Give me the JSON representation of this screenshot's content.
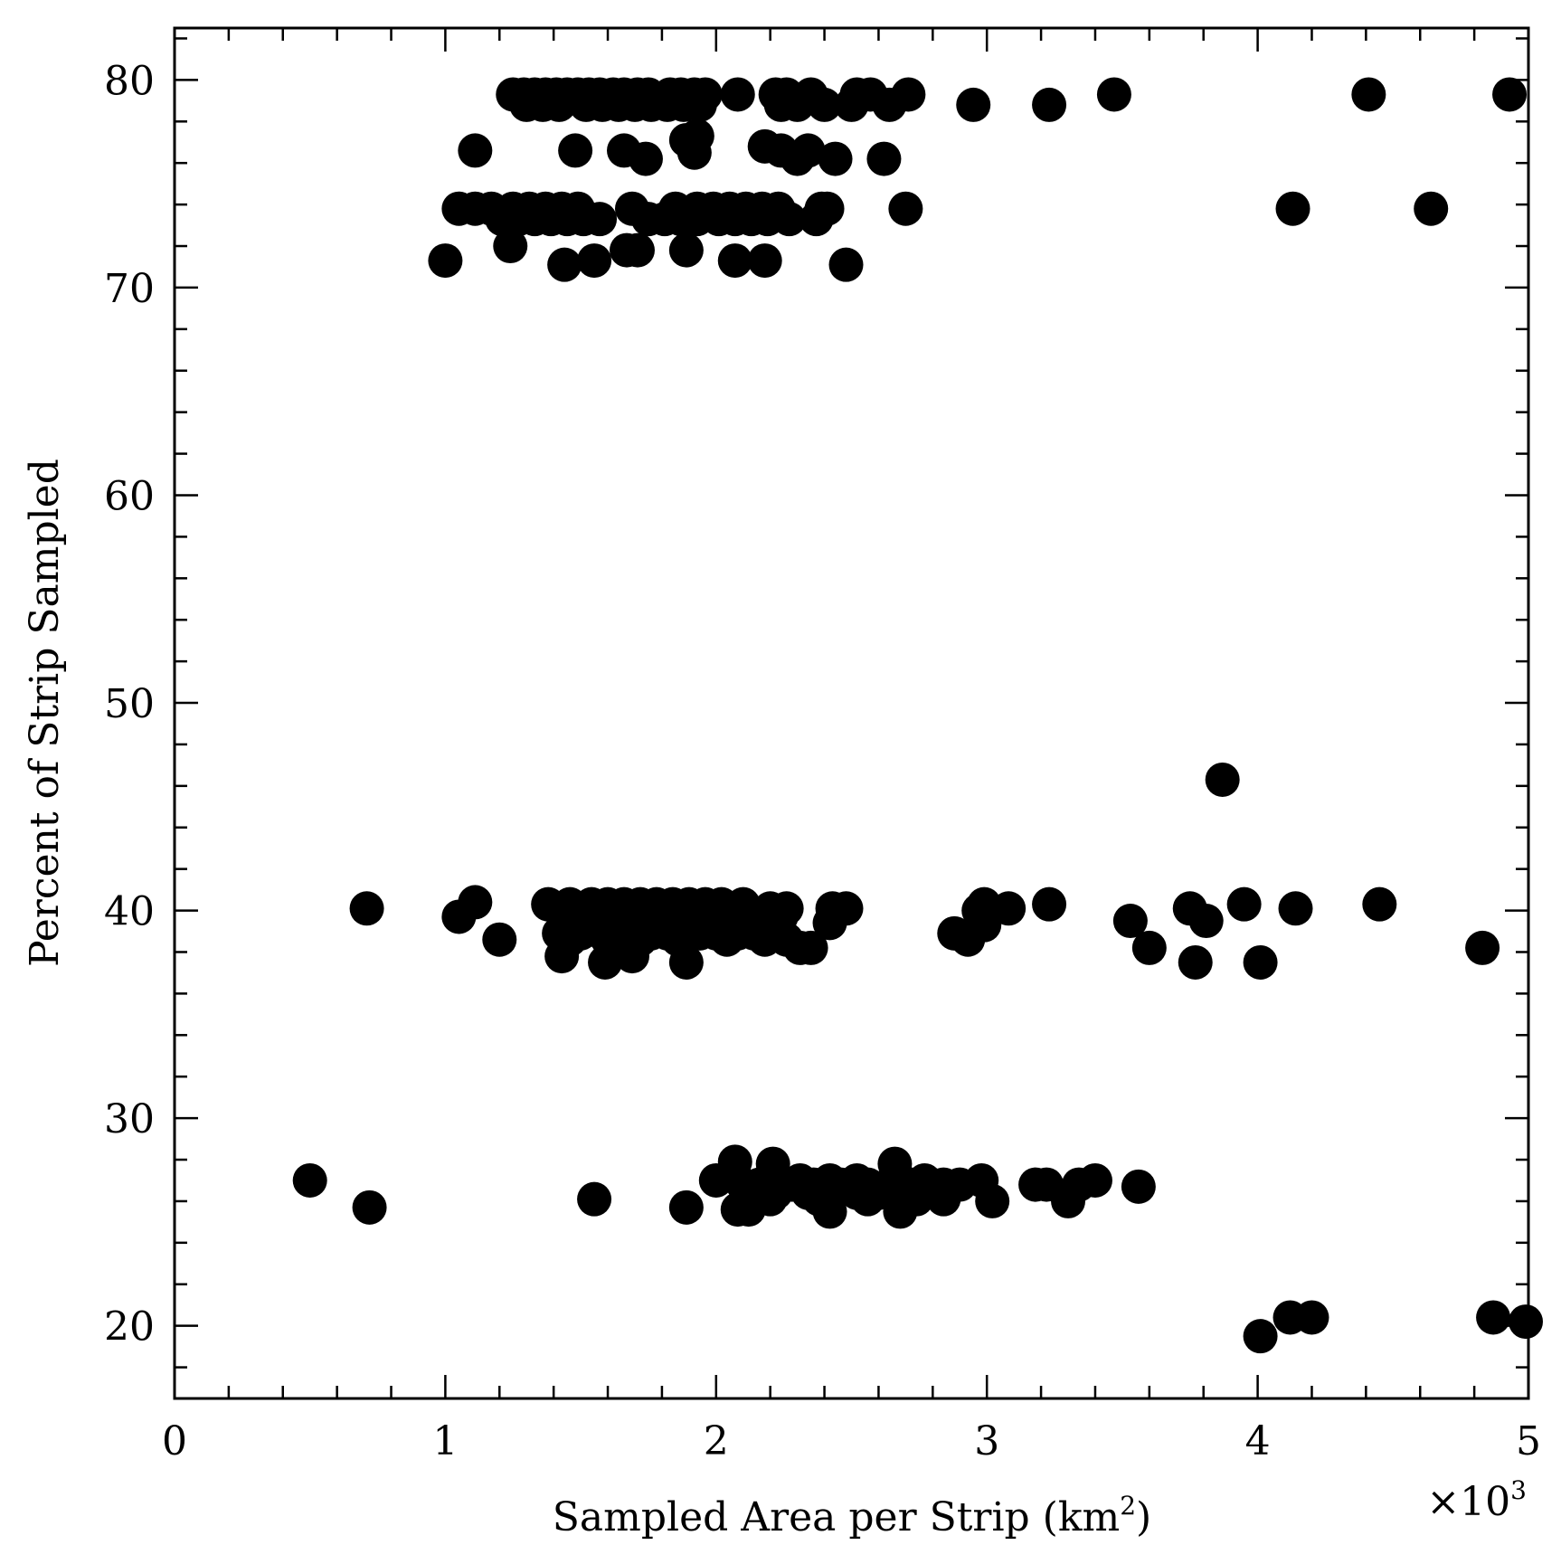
{
  "chart_data": {
    "type": "scatter",
    "title": "",
    "xlabel": "Sampled Area per Strip (km",
    "xlabel_superscript": "2",
    "xlabel_suffix": ")",
    "x_multiplier_label": "×10",
    "x_multiplier_exponent": "3",
    "ylabel": "Percent of Strip Sampled",
    "xlim": [
      0,
      5
    ],
    "ylim": [
      16.5,
      82.5
    ],
    "x_ticks": [
      0,
      1,
      2,
      3,
      4,
      5
    ],
    "x_tick_labels": [
      "0",
      "1",
      "2",
      "3",
      "4",
      "5"
    ],
    "y_ticks": [
      20,
      30,
      40,
      50,
      60,
      70,
      80
    ],
    "y_tick_labels": [
      "20",
      "30",
      "40",
      "50",
      "60",
      "70",
      "80"
    ],
    "grid": false,
    "legend": "none",
    "marker_color": "#000000",
    "series": [
      {
        "points": [
          [
            1.25,
            79.3
          ],
          [
            1.29,
            79.3
          ],
          [
            1.33,
            79.3
          ],
          [
            1.37,
            79.3
          ],
          [
            1.41,
            79.3
          ],
          [
            1.45,
            79.3
          ],
          [
            1.49,
            79.3
          ],
          [
            1.53,
            79.3
          ],
          [
            1.57,
            79.3
          ],
          [
            1.62,
            79.3
          ],
          [
            1.66,
            79.3
          ],
          [
            1.71,
            79.3
          ],
          [
            1.75,
            79.3
          ],
          [
            1.83,
            79.3
          ],
          [
            1.87,
            79.3
          ],
          [
            1.92,
            79.3
          ],
          [
            1.96,
            79.3
          ],
          [
            2.08,
            79.3
          ],
          [
            2.22,
            79.3
          ],
          [
            2.26,
            79.3
          ],
          [
            2.35,
            79.3
          ],
          [
            2.52,
            79.3
          ],
          [
            2.57,
            79.3
          ],
          [
            2.71,
            79.3
          ],
          [
            3.47,
            79.3
          ],
          [
            4.41,
            79.3
          ],
          [
            4.93,
            79.3
          ],
          [
            1.3,
            78.8
          ],
          [
            1.36,
            78.8
          ],
          [
            1.42,
            78.8
          ],
          [
            1.52,
            78.8
          ],
          [
            1.58,
            78.8
          ],
          [
            1.64,
            78.8
          ],
          [
            1.7,
            78.8
          ],
          [
            1.76,
            78.8
          ],
          [
            1.82,
            78.8
          ],
          [
            1.88,
            78.8
          ],
          [
            1.94,
            78.8
          ],
          [
            2.24,
            78.8
          ],
          [
            2.3,
            78.8
          ],
          [
            2.4,
            78.8
          ],
          [
            2.5,
            78.8
          ],
          [
            2.64,
            78.8
          ],
          [
            2.95,
            78.8
          ],
          [
            3.23,
            78.8
          ],
          [
            1.93,
            77.3
          ],
          [
            1.89,
            77.1
          ],
          [
            1.11,
            76.6
          ],
          [
            1.48,
            76.6
          ],
          [
            1.66,
            76.6
          ],
          [
            2.18,
            76.8
          ],
          [
            2.24,
            76.6
          ],
          [
            2.34,
            76.6
          ],
          [
            1.92,
            76.5
          ],
          [
            1.74,
            76.2
          ],
          [
            2.3,
            76.2
          ],
          [
            2.44,
            76.2
          ],
          [
            2.62,
            76.2
          ],
          [
            1.05,
            73.8
          ],
          [
            1.11,
            73.8
          ],
          [
            1.17,
            73.8
          ],
          [
            1.25,
            73.8
          ],
          [
            1.31,
            73.8
          ],
          [
            1.37,
            73.8
          ],
          [
            1.43,
            73.8
          ],
          [
            1.49,
            73.8
          ],
          [
            1.69,
            73.8
          ],
          [
            1.85,
            73.8
          ],
          [
            1.93,
            73.8
          ],
          [
            1.99,
            73.8
          ],
          [
            2.05,
            73.8
          ],
          [
            2.11,
            73.8
          ],
          [
            2.17,
            73.8
          ],
          [
            2.23,
            73.8
          ],
          [
            2.39,
            73.8
          ],
          [
            2.41,
            73.8
          ],
          [
            2.7,
            73.8
          ],
          [
            4.13,
            73.8
          ],
          [
            4.64,
            73.8
          ],
          [
            1.21,
            73.3
          ],
          [
            1.27,
            73.3
          ],
          [
            1.33,
            73.3
          ],
          [
            1.39,
            73.3
          ],
          [
            1.45,
            73.3
          ],
          [
            1.51,
            73.3
          ],
          [
            1.57,
            73.3
          ],
          [
            1.75,
            73.3
          ],
          [
            1.81,
            73.3
          ],
          [
            1.87,
            73.3
          ],
          [
            1.93,
            73.3
          ],
          [
            2.01,
            73.3
          ],
          [
            2.07,
            73.3
          ],
          [
            2.13,
            73.3
          ],
          [
            2.19,
            73.3
          ],
          [
            2.27,
            73.3
          ],
          [
            2.37,
            73.3
          ],
          [
            1.24,
            72.0
          ],
          [
            1.67,
            71.8
          ],
          [
            1.71,
            71.8
          ],
          [
            1.89,
            71.8
          ],
          [
            1.0,
            71.3
          ],
          [
            1.55,
            71.3
          ],
          [
            2.07,
            71.3
          ],
          [
            2.18,
            71.3
          ],
          [
            1.44,
            71.1
          ],
          [
            2.48,
            71.1
          ],
          [
            3.87,
            46.3
          ],
          [
            1.11,
            40.4
          ],
          [
            1.38,
            40.3
          ],
          [
            1.46,
            40.3
          ],
          [
            1.54,
            40.3
          ],
          [
            1.6,
            40.3
          ],
          [
            1.66,
            40.3
          ],
          [
            1.72,
            40.3
          ],
          [
            1.78,
            40.3
          ],
          [
            1.84,
            40.3
          ],
          [
            1.9,
            40.3
          ],
          [
            1.96,
            40.3
          ],
          [
            2.02,
            40.3
          ],
          [
            2.1,
            40.3
          ],
          [
            2.2,
            40.1
          ],
          [
            2.26,
            40.1
          ],
          [
            2.99,
            40.3
          ],
          [
            3.23,
            40.3
          ],
          [
            3.95,
            40.3
          ],
          [
            4.45,
            40.3
          ],
          [
            0.71,
            40.1
          ],
          [
            2.43,
            40.1
          ],
          [
            2.48,
            40.1
          ],
          [
            3.08,
            40.1
          ],
          [
            3.75,
            40.1
          ],
          [
            4.14,
            40.1
          ],
          [
            2.97,
            40.0
          ],
          [
            1.05,
            39.7
          ],
          [
            1.48,
            39.7
          ],
          [
            1.56,
            39.7
          ],
          [
            1.62,
            39.7
          ],
          [
            1.68,
            39.7
          ],
          [
            1.74,
            39.7
          ],
          [
            1.8,
            39.7
          ],
          [
            1.86,
            39.7
          ],
          [
            1.92,
            39.7
          ],
          [
            1.98,
            39.7
          ],
          [
            2.04,
            39.7
          ],
          [
            2.12,
            39.7
          ],
          [
            2.18,
            39.7
          ],
          [
            2.24,
            39.7
          ],
          [
            3.53,
            39.5
          ],
          [
            3.81,
            39.5
          ],
          [
            2.42,
            39.4
          ],
          [
            2.99,
            39.3
          ],
          [
            1.42,
            38.9
          ],
          [
            1.5,
            38.9
          ],
          [
            1.58,
            38.9
          ],
          [
            1.64,
            38.9
          ],
          [
            1.7,
            38.9
          ],
          [
            1.76,
            38.9
          ],
          [
            1.82,
            38.9
          ],
          [
            1.88,
            38.9
          ],
          [
            1.94,
            38.9
          ],
          [
            2.0,
            38.9
          ],
          [
            2.08,
            38.9
          ],
          [
            2.14,
            38.9
          ],
          [
            2.22,
            38.9
          ],
          [
            2.88,
            38.9
          ],
          [
            1.2,
            38.6
          ],
          [
            1.46,
            38.6
          ],
          [
            1.6,
            38.6
          ],
          [
            1.72,
            38.6
          ],
          [
            1.86,
            38.6
          ],
          [
            2.04,
            38.6
          ],
          [
            2.18,
            38.6
          ],
          [
            2.26,
            38.6
          ],
          [
            2.93,
            38.6
          ],
          [
            2.31,
            38.2
          ],
          [
            2.35,
            38.2
          ],
          [
            3.6,
            38.2
          ],
          [
            4.83,
            38.2
          ],
          [
            1.43,
            37.8
          ],
          [
            1.69,
            37.8
          ],
          [
            1.59,
            37.5
          ],
          [
            1.89,
            37.5
          ],
          [
            3.77,
            37.5
          ],
          [
            4.01,
            37.5
          ],
          [
            2.07,
            27.9
          ],
          [
            2.21,
            27.8
          ],
          [
            2.66,
            27.8
          ],
          [
            0.5,
            27.0
          ],
          [
            2.0,
            27.0
          ],
          [
            2.31,
            27.0
          ],
          [
            2.42,
            27.0
          ],
          [
            2.52,
            27.0
          ],
          [
            2.77,
            27.0
          ],
          [
            2.98,
            27.0
          ],
          [
            3.4,
            27.0
          ],
          [
            2.1,
            26.8
          ],
          [
            2.16,
            26.8
          ],
          [
            2.28,
            26.8
          ],
          [
            2.36,
            26.8
          ],
          [
            2.46,
            26.8
          ],
          [
            2.56,
            26.8
          ],
          [
            2.64,
            26.8
          ],
          [
            2.72,
            26.8
          ],
          [
            2.84,
            26.8
          ],
          [
            2.9,
            26.8
          ],
          [
            3.18,
            26.8
          ],
          [
            3.22,
            26.8
          ],
          [
            3.34,
            26.8
          ],
          [
            3.56,
            26.7
          ],
          [
            2.14,
            26.4
          ],
          [
            2.22,
            26.4
          ],
          [
            2.34,
            26.4
          ],
          [
            2.44,
            26.4
          ],
          [
            2.52,
            26.4
          ],
          [
            2.6,
            26.4
          ],
          [
            2.7,
            26.4
          ],
          [
            2.78,
            26.4
          ],
          [
            1.55,
            26.1
          ],
          [
            2.2,
            26.1
          ],
          [
            2.38,
            26.1
          ],
          [
            2.56,
            26.1
          ],
          [
            2.74,
            26.1
          ],
          [
            2.84,
            26.1
          ],
          [
            3.02,
            26.0
          ],
          [
            3.3,
            26.0
          ],
          [
            0.72,
            25.7
          ],
          [
            1.89,
            25.7
          ],
          [
            2.08,
            25.6
          ],
          [
            2.12,
            25.6
          ],
          [
            2.42,
            25.5
          ],
          [
            2.68,
            25.5
          ],
          [
            4.12,
            20.4
          ],
          [
            4.2,
            20.4
          ],
          [
            4.87,
            20.4
          ],
          [
            4.99,
            20.2
          ],
          [
            4.01,
            19.5
          ]
        ]
      }
    ]
  }
}
